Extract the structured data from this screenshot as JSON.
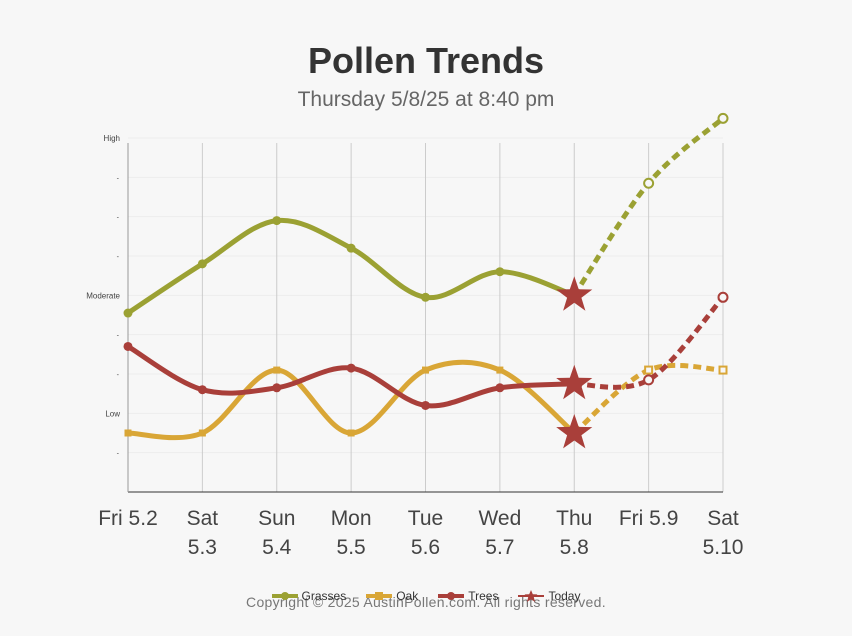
{
  "header": {
    "title": "Pollen Trends",
    "subtitle": "Thursday 5/8/25 at 8:40 pm"
  },
  "footer": {
    "copyright": "Copyright © 2025 AustinPollen.com.  All rights reserved."
  },
  "colors": {
    "grasses": "#9ba133",
    "oak": "#d9a636",
    "trees": "#a93f3a",
    "today": "#a93f3a",
    "grid": "#cccccc",
    "axis": "#333333"
  },
  "chart_data": {
    "type": "line",
    "categories": [
      [
        "Fri 5.2"
      ],
      [
        "Sat",
        "5.3"
      ],
      [
        "Sun",
        "5.4"
      ],
      [
        "Mon",
        "5.5"
      ],
      [
        "Tue",
        "5.6"
      ],
      [
        "Wed",
        "5.7"
      ],
      [
        "Thu",
        "5.8"
      ],
      [
        "Fri 5.9"
      ],
      [
        "Sat",
        "5.10"
      ]
    ],
    "y_ticks": [
      "",
      "Low",
      "",
      "",
      "Moderate",
      "",
      "",
      "",
      "High"
    ],
    "ylim": [
      0,
      9
    ],
    "today_index": 6,
    "forecast_from_index": 6,
    "series": [
      {
        "name": "Grasses",
        "color_key": "grasses",
        "values": [
          4.55,
          5.8,
          6.9,
          6.2,
          4.95,
          5.6,
          5.0,
          7.85,
          9.5
        ]
      },
      {
        "name": "Oak",
        "color_key": "oak",
        "values": [
          1.5,
          1.5,
          3.1,
          1.5,
          3.1,
          3.1,
          1.5,
          3.1,
          3.1
        ]
      },
      {
        "name": "Trees",
        "color_key": "trees",
        "values": [
          3.7,
          2.6,
          2.65,
          3.15,
          2.2,
          2.65,
          2.75,
          2.85,
          4.95
        ]
      }
    ],
    "legend": [
      {
        "label": "Grasses",
        "color_key": "grasses",
        "marker": "circle"
      },
      {
        "label": "Oak",
        "color_key": "oak",
        "marker": "square"
      },
      {
        "label": "Trees",
        "color_key": "trees",
        "marker": "circle"
      },
      {
        "label": "Today",
        "color_key": "today",
        "marker": "star"
      }
    ],
    "grid": true,
    "legend_position": "bottom"
  }
}
